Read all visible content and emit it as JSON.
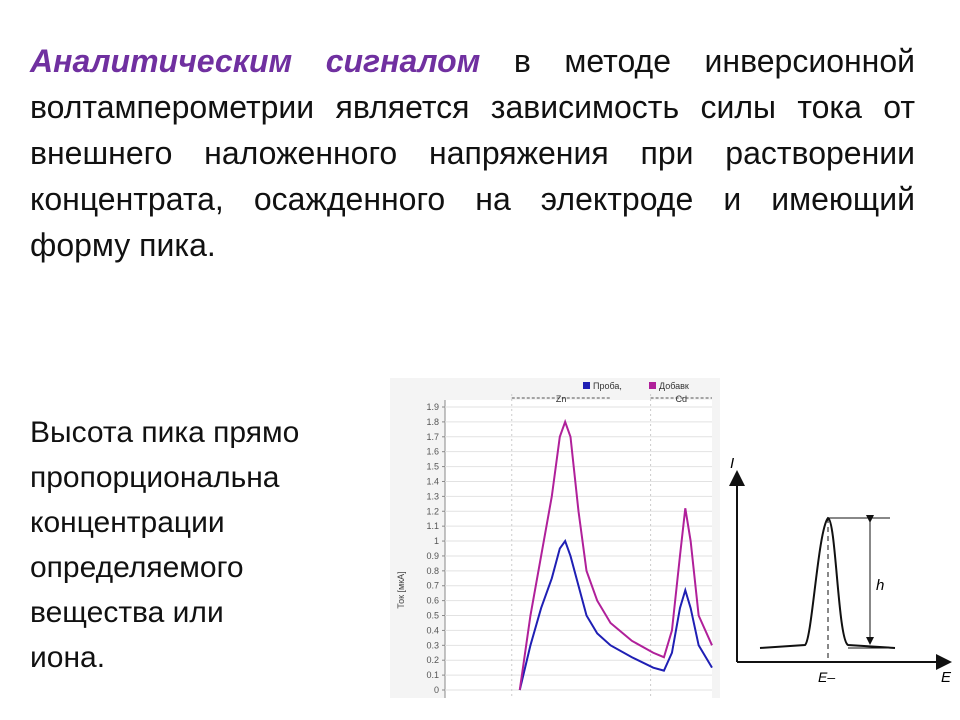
{
  "intro": {
    "lead": "Аналитическим сигналом",
    "text": "в методе инверсионной волтамперометрии является зависимость силы тока от внешнего наложенного напряжения при растворении концентрата, осажденного на электроде и имеющий форму пика."
  },
  "side_text": [
    "Высота пика прямо",
    "пропорциональна",
    "концентрации",
    "определяемого",
    "вещества или",
    "иона."
  ],
  "chart_data": {
    "type": "line",
    "y_label": "Ток [мкА]",
    "x": [
      28,
      32,
      36,
      40,
      43,
      45,
      47,
      50,
      53,
      57,
      62,
      70,
      78,
      82,
      85,
      88,
      90,
      92,
      95,
      100
    ],
    "xlim": [
      0,
      100
    ],
    "series": [
      {
        "name": "Проба,",
        "color": "#1f1fb4",
        "values": [
          0,
          0.3,
          0.55,
          0.75,
          0.95,
          1.0,
          0.9,
          0.7,
          0.5,
          0.38,
          0.3,
          0.22,
          0.15,
          0.13,
          0.25,
          0.55,
          0.67,
          0.55,
          0.3,
          0.15
        ]
      },
      {
        "name": "Добавк",
        "color": "#b0209a",
        "values": [
          0,
          0.5,
          0.9,
          1.3,
          1.7,
          1.8,
          1.7,
          1.2,
          0.8,
          0.6,
          0.45,
          0.33,
          0.25,
          0.22,
          0.4,
          0.9,
          1.22,
          1.0,
          0.5,
          0.3
        ]
      }
    ],
    "ylim": [
      0,
      1.9
    ],
    "yticks": [
      0,
      0.1,
      0.2,
      0.3,
      0.4,
      0.5,
      0.6,
      0.7,
      0.8,
      0.9,
      1,
      1.1,
      1.2,
      1.3,
      1.4,
      1.5,
      1.6,
      1.7,
      1.8,
      1.9
    ],
    "regions": [
      {
        "label": "Zn",
        "range": [
          25,
          62
        ]
      },
      {
        "label": "Cd",
        "range": [
          77,
          100
        ]
      }
    ],
    "grid": true
  },
  "diagram": {
    "y_axis": "I",
    "x_axis": "E",
    "height_label": "h",
    "peak_label": "E–"
  }
}
